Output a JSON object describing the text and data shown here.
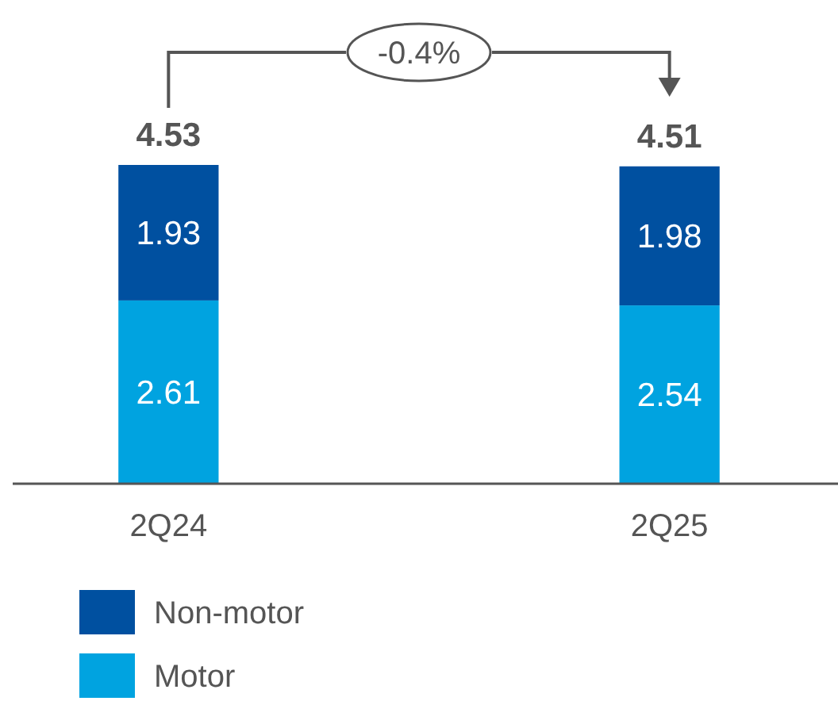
{
  "chart_data": {
    "type": "bar",
    "stacked": true,
    "categories": [
      "2Q24",
      "2Q25"
    ],
    "series": [
      {
        "name": "Motor",
        "color": "#00a3e0",
        "values": [
          2.61,
          2.54
        ]
      },
      {
        "name": "Non-motor",
        "color": "#0050a0",
        "values": [
          1.93,
          1.98
        ]
      }
    ],
    "data_labels": true,
    "totals": [
      "4.53",
      "4.51"
    ],
    "annotations": [
      "-0.4%"
    ],
    "legend": "bottom left"
  }
}
